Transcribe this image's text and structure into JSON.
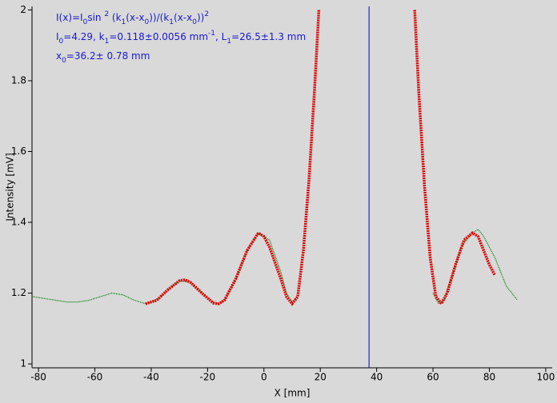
{
  "chart_data": {
    "type": "line",
    "x_label": "X [mm]",
    "y_label": "Intensity [mV]",
    "xlim": [
      -82.3,
      102.3
    ],
    "ylim": [
      0.989,
      2.01
    ],
    "xticks": [
      -80,
      -60,
      -40,
      -20,
      0,
      20,
      40,
      60,
      80,
      100
    ],
    "yticks": [
      1,
      1.2,
      1.4,
      1.6,
      1.8,
      2
    ],
    "vline": {
      "x": 37.3,
      "color": "#0000cc"
    },
    "annotation_color": "#1a1acc",
    "annotations": [
      {
        "runs": [
          {
            "t": "I(x)=I"
          },
          {
            "t": "0",
            "pos": "sub"
          },
          {
            "t": "sin "
          },
          {
            "t": "2",
            "pos": "sup"
          },
          {
            "t": " (k"
          },
          {
            "t": "1",
            "pos": "sub"
          },
          {
            "t": "(x-x"
          },
          {
            "t": "0",
            "pos": "sub"
          },
          {
            "t": "))/(k"
          },
          {
            "t": "1",
            "pos": "sub"
          },
          {
            "t": "(x-x"
          },
          {
            "t": "0",
            "pos": "sub"
          },
          {
            "t": "))"
          },
          {
            "t": "2",
            "pos": "sup"
          }
        ]
      },
      {
        "runs": [
          {
            "t": "I"
          },
          {
            "t": "0",
            "pos": "sub"
          },
          {
            "t": "=4.29,  k"
          },
          {
            "t": "1",
            "pos": "sub"
          },
          {
            "t": "=0.118±0.0056 mm"
          },
          {
            "t": "-1",
            "pos": "sup"
          },
          {
            "t": ",   L"
          },
          {
            "t": "1",
            "pos": "sub"
          },
          {
            "t": "=26.5±1.3 mm"
          }
        ]
      },
      {
        "runs": [
          {
            "t": "x"
          },
          {
            "t": "0",
            "pos": "sub"
          },
          {
            "t": "=36.2±  0.78 mm"
          }
        ]
      }
    ],
    "series": [
      {
        "color": "#008000",
        "width": 1.3,
        "dash": "1 1",
        "x": [
          -82,
          -78,
          -74,
          -70,
          -66,
          -62,
          -58,
          -54,
          -50,
          -46,
          -42,
          -38,
          -34,
          -30,
          -26,
          -22,
          -18,
          -16,
          -14,
          -10,
          -6,
          -2,
          2,
          6,
          8,
          10,
          12,
          36,
          60,
          62,
          64,
          66,
          70,
          74,
          76,
          78,
          82,
          86,
          90
        ],
        "values": [
          1.19,
          1.185,
          1.18,
          1.175,
          1.175,
          1.18,
          1.19,
          1.2,
          1.195,
          1.18,
          1.17,
          1.18,
          1.21,
          1.235,
          1.23,
          1.2,
          1.175,
          1.17,
          1.18,
          1.24,
          1.32,
          1.37,
          1.35,
          1.26,
          1.2,
          1.175,
          1.19,
          null,
          1.2,
          1.17,
          1.18,
          1.23,
          1.33,
          1.37,
          1.38,
          1.36,
          1.3,
          1.22,
          1.18
        ]
      },
      {
        "color": "#e00000",
        "width": 3.5,
        "dash": "2 1",
        "x": [
          -42,
          -38,
          -34,
          -30,
          -28,
          -26,
          -22,
          -18,
          -16,
          -14,
          -10,
          -6,
          -2,
          0,
          2,
          6,
          8,
          10,
          12,
          14,
          16,
          18,
          19.5,
          36,
          53.5,
          55,
          57,
          59,
          61,
          63,
          65,
          68,
          71,
          74,
          76,
          78,
          80,
          82
        ],
        "values": [
          1.17,
          1.18,
          1.21,
          1.235,
          1.238,
          1.23,
          1.2,
          1.172,
          1.17,
          1.18,
          1.24,
          1.32,
          1.37,
          1.36,
          1.33,
          1.24,
          1.19,
          1.17,
          1.19,
          1.32,
          1.52,
          1.78,
          2.0,
          null,
          2.0,
          1.76,
          1.5,
          1.3,
          1.19,
          1.17,
          1.2,
          1.28,
          1.35,
          1.37,
          1.36,
          1.32,
          1.28,
          1.25
        ]
      }
    ]
  }
}
